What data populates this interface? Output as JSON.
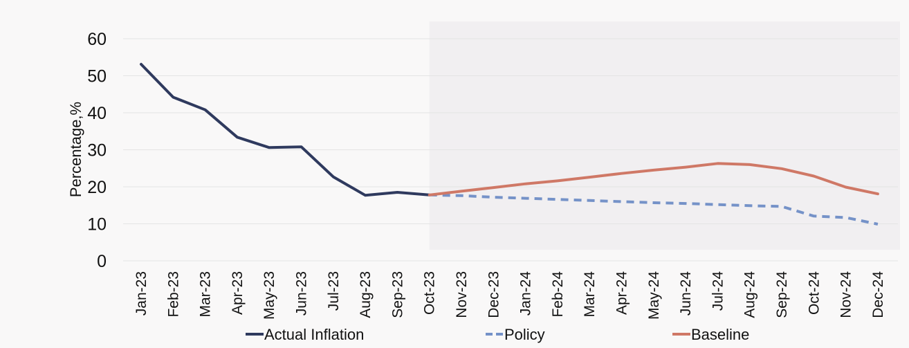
{
  "chart_data": {
    "type": "line",
    "title": "",
    "xlabel": "",
    "ylabel": "Percentage,%",
    "ylim": [
      0,
      60
    ],
    "yticks": [
      0,
      10,
      20,
      30,
      40,
      50,
      60
    ],
    "grid": true,
    "legend_position": "bottom",
    "forecast_shading_from": "Oct-23",
    "categories": [
      "Jan-23",
      "Feb-23",
      "Mar-23",
      "Apr-23",
      "May-23",
      "Jun-23",
      "Jul-23",
      "Aug-23",
      "Sep-23",
      "Oct-23",
      "Nov-23",
      "Dec-23",
      "Jan-24",
      "Feb-24",
      "Mar-24",
      "Apr-24",
      "May-24",
      "Jun-24",
      "Jul-24",
      "Aug-24",
      "Sep-24",
      "Oct-24",
      "Nov-24",
      "Dec-24"
    ],
    "series": [
      {
        "name": "Actual Inflation",
        "color": "#2f3a5e",
        "style": "solid",
        "values": [
          53.1,
          44.2,
          40.8,
          33.4,
          30.6,
          30.8,
          22.7,
          17.7,
          18.5,
          17.8,
          null,
          null,
          null,
          null,
          null,
          null,
          null,
          null,
          null,
          null,
          null,
          null,
          null,
          null
        ]
      },
      {
        "name": "Policy",
        "color": "#7592c8",
        "style": "dashed",
        "values": [
          null,
          null,
          null,
          null,
          null,
          null,
          null,
          null,
          null,
          17.8,
          17.6,
          17.2,
          16.9,
          16.6,
          16.3,
          16.0,
          15.7,
          15.5,
          15.2,
          14.9,
          14.7,
          12.1,
          11.7,
          9.9
        ]
      },
      {
        "name": "Baseline",
        "color": "#cf7866",
        "style": "solid",
        "values": [
          null,
          null,
          null,
          null,
          null,
          null,
          null,
          null,
          null,
          17.8,
          18.8,
          19.8,
          20.8,
          21.6,
          22.6,
          23.6,
          24.5,
          25.3,
          26.3,
          26.0,
          24.9,
          22.9,
          19.9,
          18.1
        ]
      }
    ]
  }
}
